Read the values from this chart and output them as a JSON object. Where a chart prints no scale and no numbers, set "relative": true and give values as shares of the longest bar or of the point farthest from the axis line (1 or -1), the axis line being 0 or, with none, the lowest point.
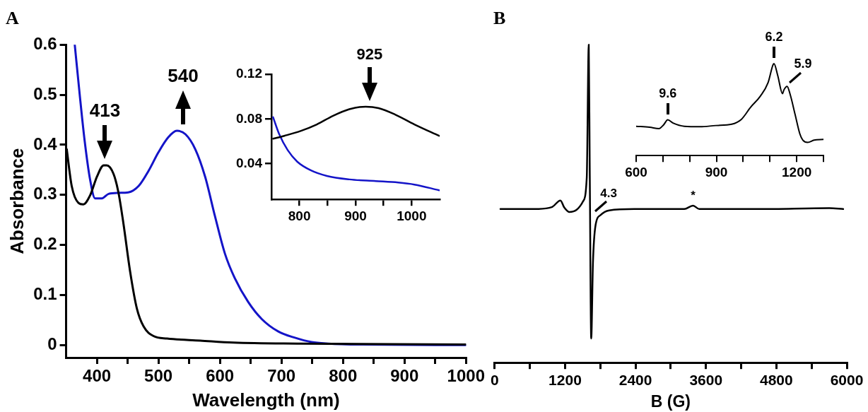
{
  "chart_data": [
    {
      "type": "line",
      "title": "A",
      "xlabel": "Wavelength (nm)",
      "ylabel": "Absorbance",
      "xlim": [
        350,
        1000
      ],
      "ylim": [
        -0.025,
        0.6
      ],
      "xticks": [
        400,
        {
          "value": 450,
          "label": null
        },
        500,
        {
          "value": 550,
          "label": null
        },
        600,
        {
          "value": 650,
          "label": null
        },
        700,
        {
          "value": 750,
          "label": null
        },
        800,
        {
          "value": 850,
          "label": null
        },
        900,
        {
          "value": 950,
          "label": null
        },
        1000
      ],
      "yticks": [
        0,
        0.1,
        0.2,
        0.3,
        0.4,
        0.5,
        0.6
      ],
      "series": [
        {
          "color": "#000000",
          "x": [
            351,
            359,
            370,
            378,
            389,
            400,
            411,
            416,
            427,
            435,
            443,
            454,
            465,
            476,
            492,
            514,
            568,
            622,
            731,
            1000
          ],
          "values": [
            0.391,
            0.318,
            0.284,
            0.281,
            0.299,
            0.336,
            0.359,
            0.359,
            0.342,
            0.305,
            0.244,
            0.147,
            0.073,
            0.037,
            0.018,
            0.013,
            0.009,
            0.005,
            0.003,
            0.001
          ]
        },
        {
          "color": "#1414c8",
          "x": [
            364,
            372,
            380,
            389,
            397,
            408,
            419,
            435,
            451,
            468,
            484,
            500,
            516,
            530,
            544,
            560,
            576,
            592,
            608,
            624,
            646,
            668,
            695,
            721,
            749,
            776,
            830,
            1000
          ],
          "values": [
            0.6,
            0.501,
            0.409,
            0.33,
            0.293,
            0.293,
            0.302,
            0.304,
            0.305,
            0.318,
            0.348,
            0.385,
            0.415,
            0.428,
            0.421,
            0.391,
            0.336,
            0.257,
            0.183,
            0.134,
            0.086,
            0.052,
            0.027,
            0.015,
            0.006,
            0.003,
            0.001,
            0
          ]
        }
      ],
      "annotations": [
        {
          "text": "413",
          "x": 413,
          "y": 0.36
        },
        {
          "text": "540",
          "x": 540,
          "y": 0.43
        }
      ]
    },
    {
      "type": "line",
      "xlim": [
        750,
        1050
      ],
      "ylim": [
        0.008,
        0.12
      ],
      "xticks": [
        800,
        {
          "value": 850,
          "label": null
        },
        900,
        {
          "value": 950,
          "label": null
        },
        1000
      ],
      "yticks": [
        0.04,
        0.08,
        0.12
      ],
      "series": [
        {
          "color": "#000000",
          "x": [
            753,
            773,
            802,
            831,
            860,
            889,
            918,
            941,
            970,
            1005,
            1049
          ],
          "values": [
            0.0623,
            0.0649,
            0.0692,
            0.0751,
            0.0828,
            0.0887,
            0.091,
            0.0897,
            0.0841,
            0.0751,
            0.0649
          ]
        },
        {
          "color": "#1414c8",
          "x": [
            753,
            764,
            779,
            796,
            820,
            849,
            889,
            936,
            976,
            1005,
            1049
          ],
          "values": [
            0.0815,
            0.0662,
            0.0521,
            0.0418,
            0.0341,
            0.029,
            0.0259,
            0.0244,
            0.0231,
            0.0213,
            0.0162
          ]
        }
      ],
      "annotations": [
        {
          "text": "925",
          "x": 925,
          "y": 0.091
        }
      ]
    },
    {
      "type": "line",
      "title": "B",
      "xlabel": "B (G)",
      "relative": true,
      "tick_labels": "x",
      "xlim": [
        0,
        6000
      ],
      "xticks": [
        0,
        {
          "value": 600,
          "label": null
        },
        1200,
        {
          "value": 1800,
          "label": null
        },
        2400,
        {
          "value": 3000,
          "label": null
        },
        3600,
        {
          "value": 4200,
          "label": null
        },
        4800,
        {
          "value": 5400,
          "label": null
        },
        6000
      ],
      "series": [
        {
          "color": "#000000",
          "x": [
            98,
            674,
            972,
            1121,
            1185,
            1270,
            1398,
            1505,
            1569,
            1603,
            1620,
            1645,
            1675,
            1718,
            1803,
            1953,
            2379,
            3231,
            3380,
            3487,
            4510,
            5703,
            5938
          ],
          "values": [
            0.483,
            0.483,
            0.489,
            0.51,
            0.488,
            0.474,
            0.481,
            0.507,
            0.582,
            1,
            0.607,
            0.076,
            0.316,
            0.431,
            0.464,
            0.479,
            0.483,
            0.483,
            0.494,
            0.483,
            0.483,
            0.486,
            0.483
          ]
        }
      ],
      "annotations": [
        {
          "text": "4.3",
          "x": 1680,
          "y": 0.464
        },
        {
          "text": "*",
          "x": 3380,
          "y": 0.494
        }
      ]
    },
    {
      "type": "line",
      "relative": true,
      "tick_labels": "x",
      "xlim": [
        600,
        1300
      ],
      "xticks": [
        600,
        {
          "value": 700,
          "label": null
        },
        {
          "value": 800,
          "label": null
        },
        900,
        {
          "value": 1000,
          "label": null
        },
        {
          "value": 1100,
          "label": null
        },
        1200,
        {
          "value": 1300,
          "label": null
        }
      ],
      "series": [
        {
          "color": "#000000",
          "x": [
            600,
            650,
            685,
            703,
            718,
            738,
            780,
            839,
            898,
            957,
            993,
            1028,
            1064,
            1093,
            1111,
            1115,
            1129,
            1147,
            1152,
            1164,
            1176,
            1194,
            1212,
            1223,
            1241,
            1265,
            1300
          ],
          "values": [
            0.319,
            0.309,
            0.293,
            0.336,
            0.389,
            0.354,
            0.319,
            0.314,
            0.327,
            0.341,
            0.394,
            0.527,
            0.646,
            0.793,
            0.984,
            1,
            0.872,
            0.673,
            0.713,
            0.753,
            0.66,
            0.447,
            0.234,
            0.168,
            0.144,
            0.168,
            0.176
          ]
        }
      ],
      "annotations": [
        {
          "text": "9.6",
          "x": 718,
          "y": 0.389
        },
        {
          "text": "6.2",
          "x": 1115,
          "y": 1
        },
        {
          "text": "5.9",
          "x": 1164,
          "y": 0.753
        }
      ]
    }
  ]
}
